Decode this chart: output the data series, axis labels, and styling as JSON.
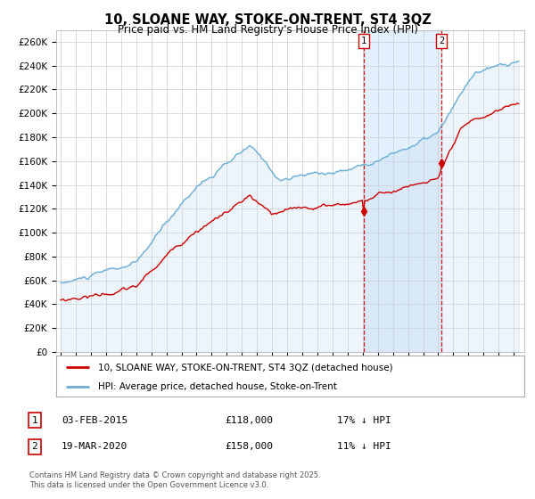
{
  "title": "10, SLOANE WAY, STOKE-ON-TRENT, ST4 3QZ",
  "subtitle": "Price paid vs. HM Land Registry's House Price Index (HPI)",
  "ylim": [
    0,
    270000
  ],
  "yticks": [
    0,
    20000,
    40000,
    60000,
    80000,
    100000,
    120000,
    140000,
    160000,
    180000,
    200000,
    220000,
    240000,
    260000
  ],
  "purchase1_date": 2015.09,
  "purchase1_price": 118000,
  "purchase1_label": "1",
  "purchase2_date": 2020.22,
  "purchase2_price": 158000,
  "purchase2_label": "2",
  "hpi_color": "#6baed6",
  "hpi_fill_color": "#c6dbef",
  "property_color": "#cc0000",
  "vline_color": "#cc0000",
  "shade_color": "#ddeeff",
  "legend_property": "10, SLOANE WAY, STOKE-ON-TRENT, ST4 3QZ (detached house)",
  "legend_hpi": "HPI: Average price, detached house, Stoke-on-Trent",
  "table_row1": [
    "1",
    "03-FEB-2015",
    "£118,000",
    "17% ↓ HPI"
  ],
  "table_row2": [
    "2",
    "19-MAR-2020",
    "£158,000",
    "11% ↓ HPI"
  ],
  "footnote": "Contains HM Land Registry data © Crown copyright and database right 2025.\nThis data is licensed under the Open Government Licence v3.0.",
  "background_color": "#ffffff",
  "grid_color": "#cccccc"
}
